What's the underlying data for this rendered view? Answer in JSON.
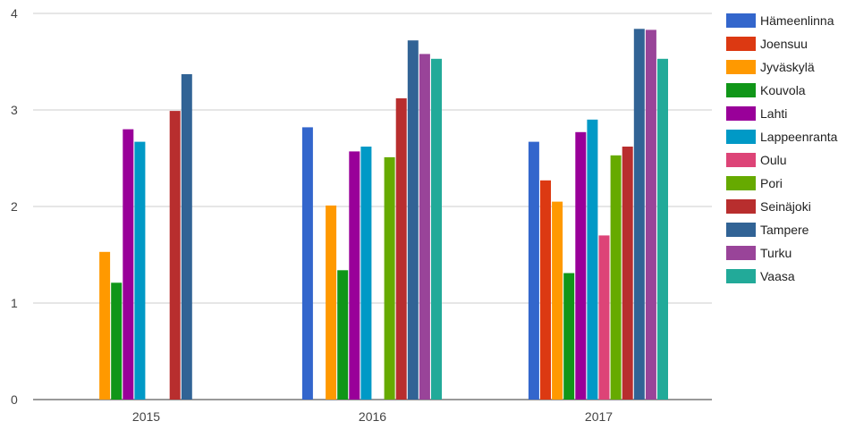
{
  "chart_data": {
    "type": "bar",
    "title": "",
    "xlabel": "",
    "ylabel": "",
    "categories": [
      "2015",
      "2016",
      "2017"
    ],
    "ylim": [
      0,
      4
    ],
    "yticks": [
      "0",
      "1",
      "2",
      "3",
      "4"
    ],
    "grid": true,
    "legend_position": "right",
    "series": [
      {
        "name": "Hämeenlinna",
        "color": "#3366cc",
        "values": [
          null,
          2.82,
          2.67
        ]
      },
      {
        "name": "Joensuu",
        "color": "#dc3912",
        "values": [
          null,
          null,
          2.27
        ]
      },
      {
        "name": "Jyväskylä",
        "color": "#ff9900",
        "values": [
          1.53,
          2.01,
          2.05
        ]
      },
      {
        "name": "Kouvola",
        "color": "#109618",
        "values": [
          1.21,
          1.34,
          1.31
        ]
      },
      {
        "name": "Lahti",
        "color": "#990099",
        "values": [
          2.8,
          2.57,
          2.77
        ]
      },
      {
        "name": "Lappeenranta",
        "color": "#0099c6",
        "values": [
          2.67,
          2.62,
          2.9
        ]
      },
      {
        "name": "Oulu",
        "color": "#dd4477",
        "values": [
          null,
          null,
          1.7
        ]
      },
      {
        "name": "Pori",
        "color": "#66aa00",
        "values": [
          null,
          2.51,
          2.53
        ]
      },
      {
        "name": "Seinäjoki",
        "color": "#b82e2e",
        "values": [
          2.99,
          3.12,
          2.62
        ]
      },
      {
        "name": "Tampere",
        "color": "#316395",
        "values": [
          3.37,
          3.72,
          3.84
        ]
      },
      {
        "name": "Turku",
        "color": "#994499",
        "values": [
          null,
          3.58,
          3.83
        ]
      },
      {
        "name": "Vaasa",
        "color": "#22aa99",
        "values": [
          null,
          3.53,
          3.53
        ]
      }
    ]
  }
}
